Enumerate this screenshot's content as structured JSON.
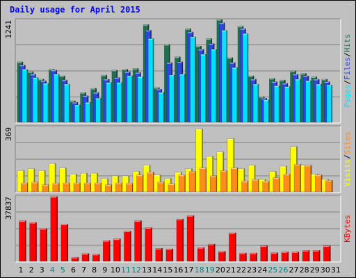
{
  "title": "Daily usage for April 2015",
  "colors": {
    "pages": "#00e0ff",
    "files": "#2a48e0",
    "hits": "#1e7050",
    "visits": "#ffff00",
    "sites": "#ff8c1a",
    "kbytes": "#ff0000",
    "weekday": "#000000",
    "weekend": "#008080",
    "separator": "#000000"
  },
  "chart_data": [
    {
      "type": "bar",
      "name": "hits-files-pages",
      "categories": [
        "1",
        "2",
        "3",
        "4",
        "5",
        "6",
        "7",
        "8",
        "9",
        "10",
        "11",
        "12",
        "13",
        "14",
        "15",
        "16",
        "17",
        "18",
        "19",
        "20",
        "21",
        "22",
        "23",
        "24",
        "25",
        "26",
        "27",
        "28",
        "29",
        "30",
        "31"
      ],
      "ymax_label": "1241",
      "ylim": [
        0,
        1241
      ],
      "legend": [
        "Pages",
        "Files",
        "Hits"
      ],
      "series": [
        {
          "name": "Hits",
          "values": [
            730,
            610,
            520,
            640,
            560,
            260,
            360,
            410,
            570,
            630,
            640,
            650,
            1180,
            420,
            940,
            790,
            1130,
            920,
            1010,
            1250,
            780,
            1160,
            560,
            310,
            530,
            510,
            620,
            590,
            550,
            520,
            0
          ]
        },
        {
          "name": "Files",
          "values": [
            690,
            580,
            500,
            630,
            510,
            240,
            320,
            360,
            520,
            540,
            610,
            600,
            1110,
            400,
            720,
            730,
            1090,
            880,
            950,
            1200,
            720,
            1130,
            520,
            290,
            490,
            470,
            580,
            560,
            520,
            490,
            0
          ]
        },
        {
          "name": "Pages",
          "values": [
            640,
            540,
            470,
            580,
            460,
            210,
            240,
            290,
            480,
            480,
            560,
            550,
            1010,
            360,
            570,
            580,
            1030,
            820,
            880,
            1110,
            660,
            1070,
            460,
            270,
            440,
            430,
            520,
            500,
            460,
            450,
            0
          ]
        }
      ]
    },
    {
      "type": "bar",
      "name": "visits-sites",
      "categories": [
        "1",
        "2",
        "3",
        "4",
        "5",
        "6",
        "7",
        "8",
        "9",
        "10",
        "11",
        "12",
        "13",
        "14",
        "15",
        "16",
        "17",
        "18",
        "19",
        "20",
        "21",
        "22",
        "23",
        "24",
        "25",
        "26",
        "27",
        "28",
        "29",
        "30",
        "31"
      ],
      "ymax_label": "369",
      "ylim": [
        0,
        369
      ],
      "legend": [
        "Visits",
        "Sites"
      ],
      "series": [
        {
          "name": "Visits",
          "values": [
            120,
            130,
            120,
            160,
            135,
            100,
            105,
            105,
            75,
            90,
            90,
            115,
            150,
            95,
            75,
            110,
            130,
            355,
            200,
            225,
            300,
            130,
            150,
            70,
            115,
            145,
            255,
            150,
            100,
            70,
            0
          ]
        },
        {
          "name": "Sites",
          "values": [
            50,
            55,
            40,
            48,
            50,
            50,
            50,
            50,
            40,
            50,
            48,
            95,
            110,
            55,
            45,
            95,
            115,
            135,
            90,
            120,
            135,
            60,
            70,
            60,
            80,
            100,
            155,
            150,
            95,
            65,
            0
          ]
        }
      ]
    },
    {
      "type": "bar",
      "name": "kbytes",
      "categories": [
        "1",
        "2",
        "3",
        "4",
        "5",
        "6",
        "7",
        "8",
        "9",
        "10",
        "11",
        "12",
        "13",
        "14",
        "15",
        "16",
        "17",
        "18",
        "19",
        "20",
        "21",
        "22",
        "23",
        "24",
        "25",
        "26",
        "27",
        "28",
        "29",
        "30",
        "31"
      ],
      "ymax_label": "37837",
      "ylim": [
        0,
        37837
      ],
      "legend": [
        "KBytes"
      ],
      "series": [
        {
          "name": "KBytes",
          "values": [
            23500,
            22500,
            19000,
            37500,
            21500,
            2300,
            4500,
            4100,
            12000,
            13000,
            17500,
            23500,
            19500,
            7500,
            7200,
            24500,
            26500,
            8000,
            10000,
            5800,
            16500,
            4800,
            4800,
            9000,
            5000,
            5500,
            5500,
            6300,
            6300,
            9000,
            0
          ]
        }
      ]
    }
  ]
}
